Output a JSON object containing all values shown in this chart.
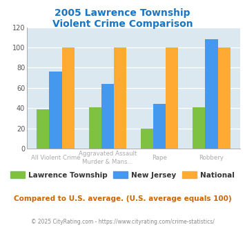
{
  "title_line1": "2005 Lawrence Township",
  "title_line2": "Violent Crime Comparison",
  "series": {
    "Lawrence Township": [
      39,
      41,
      20,
      41
    ],
    "New Jersey": [
      76,
      64,
      44,
      108
    ],
    "National": [
      100,
      100,
      100,
      100
    ]
  },
  "colors": {
    "Lawrence Township": "#7fc241",
    "New Jersey": "#4499ee",
    "National": "#ffaa33"
  },
  "ylim": [
    0,
    120
  ],
  "yticks": [
    0,
    20,
    40,
    60,
    80,
    100,
    120
  ],
  "title_color": "#1a75c4",
  "plot_bg": "#dce8f0",
  "footer": "© 2025 CityRating.com - https://www.cityrating.com/crime-statistics/",
  "note": "Compared to U.S. average. (U.S. average equals 100)",
  "note_color": "#cc6600",
  "footer_color": "#888888",
  "top_labels": [
    "",
    "Aggravated Assault",
    "",
    ""
  ],
  "bot_labels": [
    "All Violent Crime",
    "Murder & Mans...",
    "Rape",
    "Robbery"
  ]
}
